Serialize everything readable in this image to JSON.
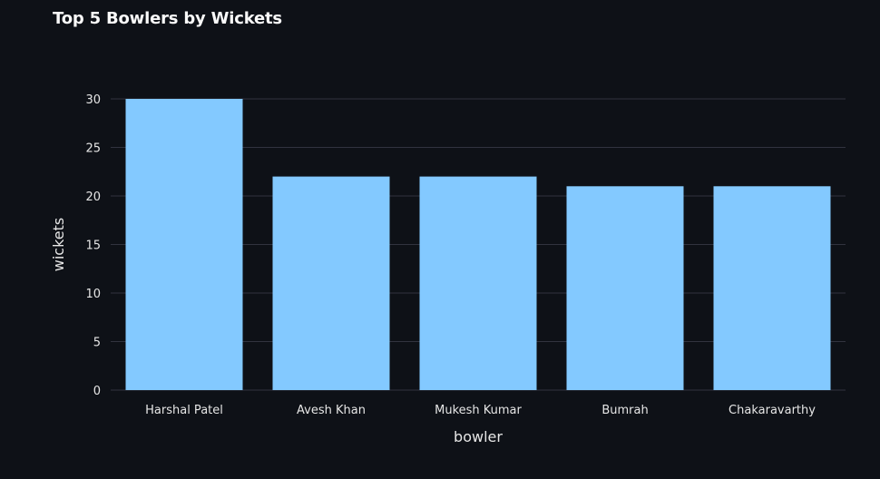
{
  "chart_data": {
    "type": "bar",
    "title": "Top 5 Bowlers by Wickets",
    "xlabel": "bowler",
    "ylabel": "wickets",
    "categories": [
      "Harshal Patel",
      "Avesh Khan",
      "Mukesh Kumar",
      "Bumrah",
      "Chakaravarthy"
    ],
    "values": [
      30,
      22,
      22,
      21,
      21
    ],
    "ylim": [
      0,
      30
    ],
    "yticks": [
      0,
      5,
      10,
      15,
      20,
      25,
      30
    ],
    "grid": true,
    "colors": {
      "bar": "#83c9ff",
      "grid": "#31333f",
      "background": "#0e1117"
    }
  }
}
